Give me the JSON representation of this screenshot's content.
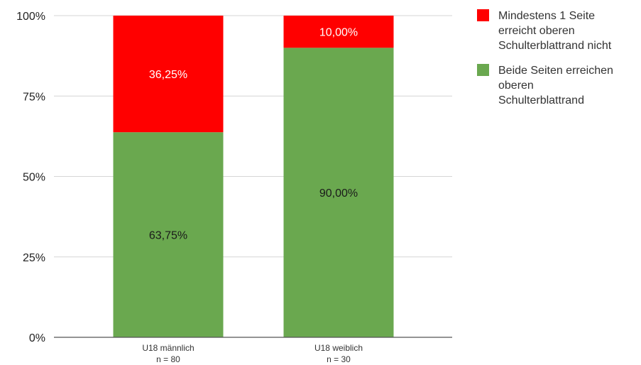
{
  "chart_data": {
    "type": "bar",
    "stacked": true,
    "categories": [
      [
        "U18 männlich",
        "n = 80"
      ],
      [
        "U18 weiblich",
        "n = 30"
      ]
    ],
    "series": [
      {
        "name": "Beide Seiten erreichen oberen Schulterblattrand",
        "values": [
          63.75,
          90.0
        ],
        "labels": [
          "63,75%",
          "90,00%"
        ],
        "color": "#6aa84f",
        "label_color": "#1a1a1a"
      },
      {
        "name": "Mindestens 1 Seite erreicht oberen Schulterblattrand nicht",
        "values": [
          36.25,
          10.0
        ],
        "labels": [
          "36,25%",
          "10,00%"
        ],
        "color": "#ff0000",
        "label_color": "#ffffff"
      }
    ],
    "ylim": [
      0,
      100
    ],
    "yticks": [
      0,
      25,
      50,
      75,
      100
    ],
    "ytick_labels": [
      "0%",
      "25%",
      "50%",
      "75%",
      "100%"
    ],
    "grid": true,
    "legend_position": "top-right",
    "legend": [
      {
        "lines": [
          "Mindestens 1 Seite",
          "erreicht oberen",
          "Schulterblattrand nicht"
        ],
        "color": "#ff0000"
      },
      {
        "lines": [
          "Beide Seiten erreichen",
          "oberen",
          "Schulterblattrand"
        ],
        "color": "#6aa84f"
      }
    ]
  }
}
